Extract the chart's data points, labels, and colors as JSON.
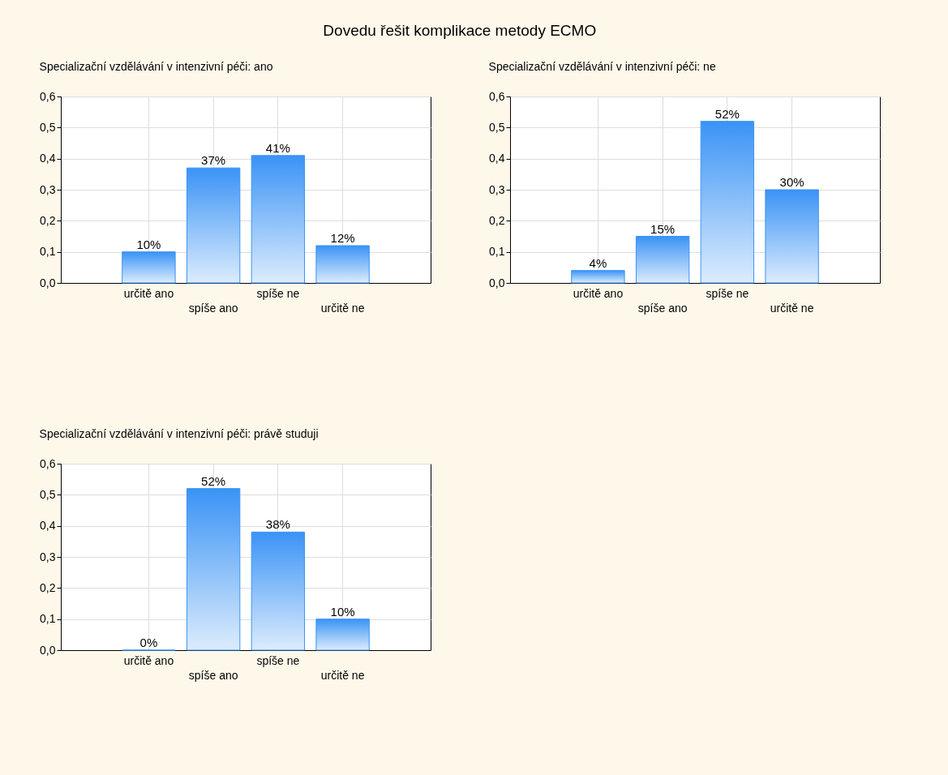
{
  "chart_data": [
    {
      "type": "other",
      "title": "Dovedu řešit komplikace metody ECMO"
    },
    {
      "type": "bar",
      "title": "Specializační vzdělávání v intenzivní péči: ano",
      "categories": [
        "určitě ano",
        "spíše ano",
        "spíše ne",
        "určitě ne"
      ],
      "values": [
        0.1,
        0.37,
        0.41,
        0.12
      ],
      "value_labels": [
        "10%",
        "37%",
        "41%",
        "12%"
      ],
      "color": "#3a93f5",
      "ylim": [
        0,
        0.6
      ],
      "yticks": [
        {
          "value": 0,
          "label": "0,0"
        },
        {
          "value": 0.1,
          "label": "0,1"
        },
        {
          "value": 0.2,
          "label": "0,2"
        },
        {
          "value": 0.3,
          "label": "0,3"
        },
        {
          "value": 0.4,
          "label": "0,4"
        },
        {
          "value": 0.5,
          "label": "0,5"
        },
        {
          "value": 0.6,
          "label": "0,6"
        }
      ],
      "grid": true
    },
    {
      "type": "bar",
      "title": "Specializační vzdělávání v intenzivní péči: ne",
      "categories": [
        "určitě ano",
        "spíše ano",
        "spíše ne",
        "určitě ne"
      ],
      "values": [
        0.04,
        0.15,
        0.52,
        0.3
      ],
      "value_labels": [
        "4%",
        "15%",
        "52%",
        "30%"
      ],
      "color": "#3a93f5",
      "ylim": [
        0,
        0.6
      ],
      "yticks": [
        {
          "value": 0,
          "label": "0,0"
        },
        {
          "value": 0.1,
          "label": "0,1"
        },
        {
          "value": 0.2,
          "label": "0,2"
        },
        {
          "value": 0.3,
          "label": "0,3"
        },
        {
          "value": 0.4,
          "label": "0,4"
        },
        {
          "value": 0.5,
          "label": "0,5"
        },
        {
          "value": 0.6,
          "label": "0,6"
        }
      ],
      "grid": true
    },
    {
      "type": "bar",
      "title": "Specializační vzdělávání v intenzivní péči: právě studuji",
      "categories": [
        "určitě ano",
        "spíše ano",
        "spíše ne",
        "určitě ne"
      ],
      "values": [
        0,
        0.52,
        0.38,
        0.1
      ],
      "value_labels": [
        "0%",
        "52%",
        "38%",
        "10%"
      ],
      "color": "#3a93f5",
      "ylim": [
        0,
        0.6
      ],
      "yticks": [
        {
          "value": 0,
          "label": "0,0"
        },
        {
          "value": 0.1,
          "label": "0,1"
        },
        {
          "value": 0.2,
          "label": "0,2"
        },
        {
          "value": 0.3,
          "label": "0,3"
        },
        {
          "value": 0.4,
          "label": "0,4"
        },
        {
          "value": 0.5,
          "label": "0,5"
        },
        {
          "value": 0.6,
          "label": "0,6"
        }
      ],
      "grid": true
    }
  ]
}
